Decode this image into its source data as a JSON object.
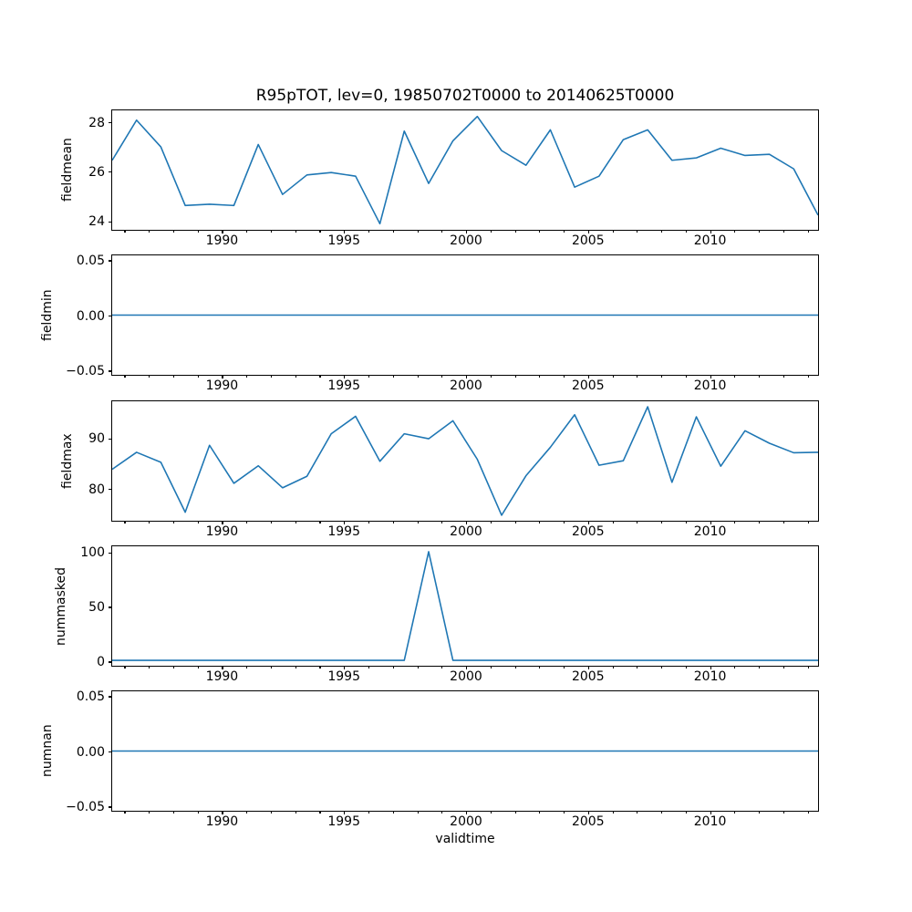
{
  "chart_data": {
    "type": "line",
    "title": "R95pTOT, lev=0, 19850702T0000 to 20140625T0000",
    "xlabel": "validtime",
    "line_color": "#1f77b4",
    "axis_color": "#000000",
    "background_color": "#ffffff",
    "legend": "none",
    "grid": false,
    "xlim": [
      1985.5,
      2014.5
    ],
    "xticks": [
      1990,
      1995,
      2000,
      2005,
      2010
    ],
    "xtick_labels": [
      "1990",
      "1995",
      "2000",
      "2005",
      "2010"
    ],
    "xticks_minor": [
      1986,
      1987,
      1988,
      1989,
      1990,
      1991,
      1992,
      1993,
      1994,
      1995,
      1996,
      1997,
      1998,
      1999,
      2000,
      2001,
      2002,
      2003,
      2004,
      2005,
      2006,
      2007,
      2008,
      2009,
      2010,
      2011,
      2012,
      2013,
      2014
    ],
    "x": [
      1985.5,
      1986.5,
      1987.5,
      1988.5,
      1989.5,
      1990.5,
      1991.5,
      1992.5,
      1993.5,
      1994.5,
      1995.5,
      1996.5,
      1997.5,
      1998.5,
      1999.5,
      2000.5,
      2001.5,
      2002.5,
      2003.5,
      2004.5,
      2005.5,
      2006.5,
      2007.5,
      2008.5,
      2009.5,
      2010.5,
      2011.5,
      2012.5,
      2013.5,
      2014.5
    ],
    "subplots": [
      {
        "ylabel": "fieldmean",
        "yticks": [
          24,
          26,
          28
        ],
        "ytick_labels": [
          "24",
          "26",
          "28"
        ],
        "ylim": [
          23.6,
          28.5
        ],
        "values": [
          26.45,
          28.1,
          27.0,
          24.6,
          24.65,
          24.6,
          27.1,
          25.05,
          25.85,
          25.95,
          25.8,
          23.85,
          27.65,
          25.5,
          27.25,
          28.25,
          26.85,
          26.25,
          27.7,
          25.35,
          25.8,
          27.3,
          27.7,
          26.45,
          26.55,
          26.95,
          26.65,
          26.7,
          26.1,
          24.2
        ]
      },
      {
        "ylabel": "fieldmin",
        "yticks": [
          -0.05,
          0.0,
          0.05
        ],
        "ytick_labels": [
          "−0.05",
          "0.00",
          "0.05"
        ],
        "ylim": [
          -0.055,
          0.055
        ],
        "values": [
          0,
          0,
          0,
          0,
          0,
          0,
          0,
          0,
          0,
          0,
          0,
          0,
          0,
          0,
          0,
          0,
          0,
          0,
          0,
          0,
          0,
          0,
          0,
          0,
          0,
          0,
          0,
          0,
          0,
          0
        ]
      },
      {
        "ylabel": "fieldmax",
        "yticks": [
          80,
          90
        ],
        "ytick_labels": [
          "80",
          "90"
        ],
        "ylim": [
          73.5,
          97.4
        ],
        "values": [
          83.8,
          87.2,
          85.2,
          75.2,
          88.6,
          81.0,
          84.5,
          80.1,
          82.4,
          90.9,
          94.4,
          85.4,
          90.9,
          89.9,
          93.5,
          85.8,
          74.6,
          82.5,
          88.2,
          94.7,
          84.6,
          85.5,
          96.3,
          81.2,
          94.3,
          84.4,
          91.5,
          89.0,
          87.1,
          87.2
        ]
      },
      {
        "ylabel": "nummasked",
        "yticks": [
          0,
          50,
          100
        ],
        "ytick_labels": [
          "0",
          "50",
          "100"
        ],
        "ylim": [
          -5.05,
          106.05
        ],
        "values": [
          0,
          0,
          0,
          0,
          0,
          0,
          0,
          0,
          0,
          0,
          0,
          0,
          0,
          101,
          0,
          0,
          0,
          0,
          0,
          0,
          0,
          0,
          0,
          0,
          0,
          0,
          0,
          0,
          0,
          0
        ]
      },
      {
        "ylabel": "numnan",
        "yticks": [
          -0.05,
          0.0,
          0.05
        ],
        "ytick_labels": [
          "−0.05",
          "0.00",
          "0.05"
        ],
        "ylim": [
          -0.055,
          0.055
        ],
        "values": [
          0,
          0,
          0,
          0,
          0,
          0,
          0,
          0,
          0,
          0,
          0,
          0,
          0,
          0,
          0,
          0,
          0,
          0,
          0,
          0,
          0,
          0,
          0,
          0,
          0,
          0,
          0,
          0,
          0,
          0
        ]
      }
    ]
  }
}
